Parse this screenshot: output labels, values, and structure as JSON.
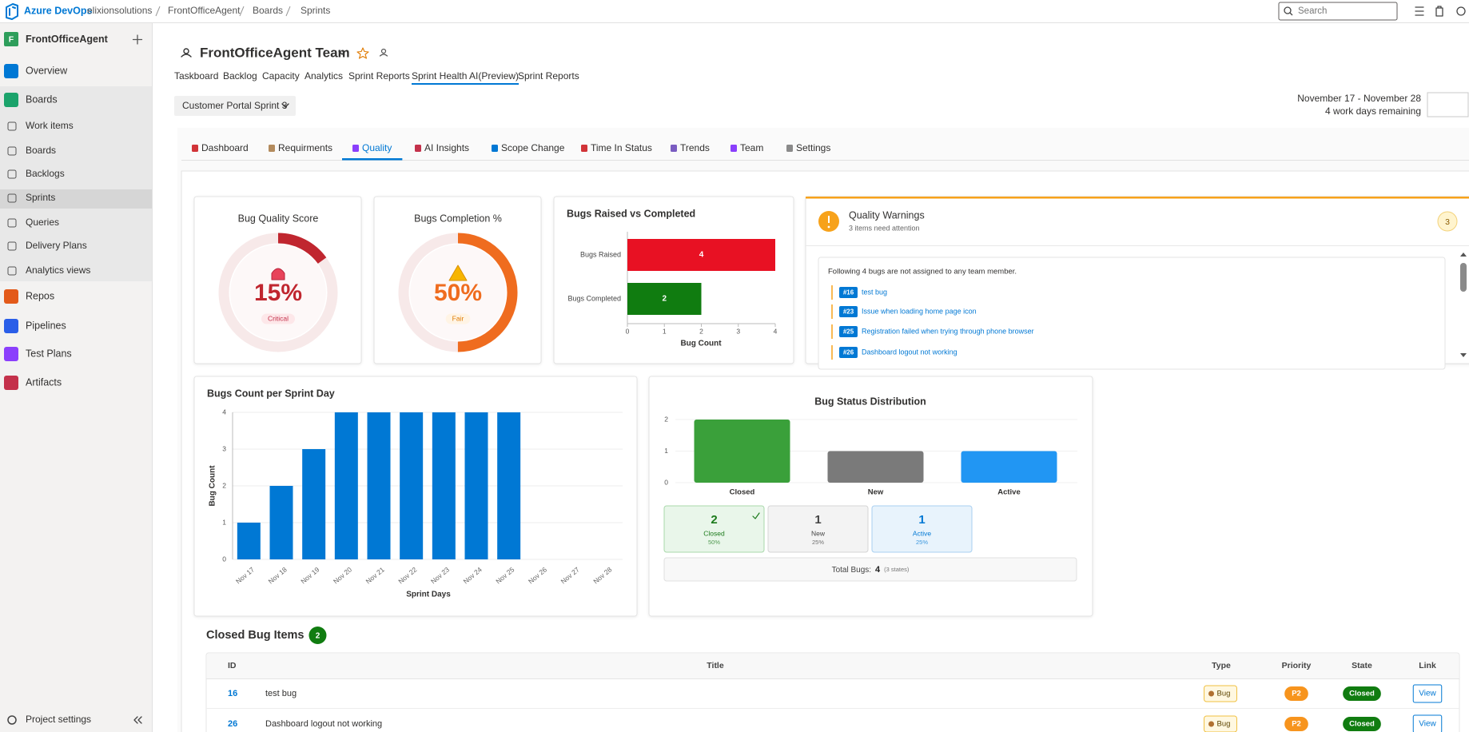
{
  "topbar": {
    "product": "Azure DevOps",
    "breadcrumb": [
      "elixionsolutions",
      "FrontOfficeAgent",
      "Boards",
      "Sprints"
    ],
    "search": "Search"
  },
  "sidebar": {
    "project_initial": "F",
    "project": "FrontOfficeAgent",
    "nav": [
      "Overview",
      "Boards",
      "Work items",
      "Boards",
      "Backlogs",
      "Sprints",
      "Queries",
      "Delivery Plans",
      "Analytics views",
      "Repos",
      "Pipelines",
      "Test Plans",
      "Artifacts"
    ],
    "settings": "Project settings"
  },
  "header": {
    "team": "FrontOfficeAgent Team",
    "tabs": [
      "Taskboard",
      "Backlog",
      "Capacity",
      "Analytics",
      "Sprint Reports",
      "Sprint Health AI(Preview)",
      "Sprint Reports"
    ],
    "active_tab": 5,
    "sprint": "Customer Portal Sprint 3",
    "dates": "November 17 - November 28",
    "remaining": "4 work days remaining"
  },
  "report_tabs": {
    "tabs": [
      "Dashboard",
      "Requirments",
      "Quality",
      "AI Insights",
      "Scope Change",
      "Time In Status",
      "Trends",
      "Team",
      "Settings"
    ],
    "active": 2
  },
  "bug_quality_score": {
    "title": "Bug Quality Score",
    "value": 15,
    "value_label": "15%",
    "status": "Critical",
    "color": "#c0262f"
  },
  "bugs_completion": {
    "title": "Bugs Completion %",
    "value": 50,
    "value_label": "50%",
    "status": "Fair",
    "color": "#ef6c1f"
  },
  "bugs_raised_vs_completed": {
    "type": "bar",
    "orientation": "horizontal",
    "title": "Bugs Raised vs Completed",
    "categories": [
      "Bugs Raised",
      "Bugs Completed"
    ],
    "values": [
      4,
      2
    ],
    "colors": [
      "#e81123",
      "#107c10"
    ],
    "xlim": [
      0,
      4
    ],
    "xticks": [
      0,
      1,
      2,
      3,
      4
    ],
    "x_label": "Bug Count"
  },
  "quality_warnings": {
    "title": "Quality Warnings",
    "subtitle": "3 items need attention",
    "count": 3,
    "message": "Following 4 bugs are not assigned to any team member.",
    "items": [
      {
        "id": "#16",
        "title": "test bug"
      },
      {
        "id": "#23",
        "title": "Issue when loading home page icon"
      },
      {
        "id": "#25",
        "title": "Registration failed when trying through phone browser"
      },
      {
        "id": "#26",
        "title": "Dashboard logout not working"
      }
    ]
  },
  "bugs_per_day": {
    "type": "bar",
    "title": "Bugs Count per Sprint Day",
    "categories": [
      "Nov 17",
      "Nov 18",
      "Nov 19",
      "Nov 20",
      "Nov 21",
      "Nov 22",
      "Nov 23",
      "Nov 24",
      "Nov 25",
      "Nov 26",
      "Nov 27",
      "Nov 28"
    ],
    "values": [
      1,
      2,
      3,
      4,
      4,
      4,
      4,
      4,
      4,
      null,
      null,
      null
    ],
    "color": "#0078d4",
    "ylim": [
      0,
      4
    ],
    "yticks": [
      0,
      1,
      2,
      3,
      4
    ],
    "grid": true,
    "x_label": "Sprint Days",
    "y_label": "Bug Count"
  },
  "bug_status": {
    "type": "bar",
    "title": "Bug Status Distribution",
    "categories": [
      "Closed",
      "New",
      "Active"
    ],
    "values": [
      2,
      1,
      1
    ],
    "colors": [
      "#3aa03a",
      "#7a7a7a",
      "#2196f3"
    ],
    "ylim": [
      0,
      2
    ],
    "yticks": [
      0,
      1,
      2
    ],
    "grid": true,
    "cards": [
      {
        "count": 2,
        "label": "Closed",
        "percent": "50%"
      },
      {
        "count": 1,
        "label": "New",
        "percent": "25%"
      },
      {
        "count": 1,
        "label": "Active",
        "percent": "25%"
      }
    ],
    "total_label": "Total Bugs:",
    "total": 4,
    "states": "(3 states)"
  },
  "closed_bugs": {
    "title": "Closed Bug Items",
    "count": 2,
    "columns": [
      "ID",
      "Title",
      "Type",
      "Priority",
      "State",
      "Link"
    ],
    "rows": [
      [
        "16",
        "test bug",
        "Bug",
        "P2",
        "Closed",
        "View"
      ],
      [
        "26",
        "Dashboard logout not working",
        "Bug",
        "P2",
        "Closed",
        "View"
      ]
    ]
  }
}
